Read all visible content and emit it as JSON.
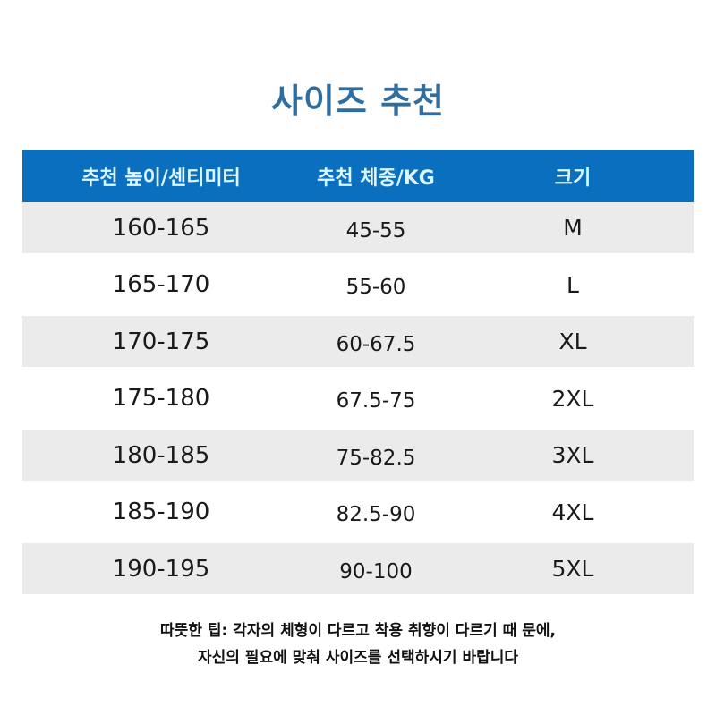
{
  "title": "사이즈 추천",
  "table": {
    "headers": [
      "추천 높이/센티미터",
      "추천 체중/KG",
      "크기"
    ],
    "rows": [
      [
        "160-165",
        "45-55",
        "M"
      ],
      [
        "165-170",
        "55-60",
        "L"
      ],
      [
        "170-175",
        "60-67.5",
        "XL"
      ],
      [
        "175-180",
        "67.5-75",
        "2XL"
      ],
      [
        "180-185",
        "75-82.5",
        "3XL"
      ],
      [
        "185-190",
        "82.5-90",
        "4XL"
      ],
      [
        "190-195",
        "90-100",
        "5XL"
      ]
    ]
  },
  "note": {
    "line1": "따뜻한 팁: 각자의 체형이 다르고 착용 취향이 다르기 때 문에,",
    "line2": "자신의 필요에 맞춰 사이즈를 선택하시기 바랍니다"
  },
  "colors": {
    "header_bg": "#0a6fbe",
    "title": "#2f6e9e",
    "stripe": "#ebebeb"
  }
}
